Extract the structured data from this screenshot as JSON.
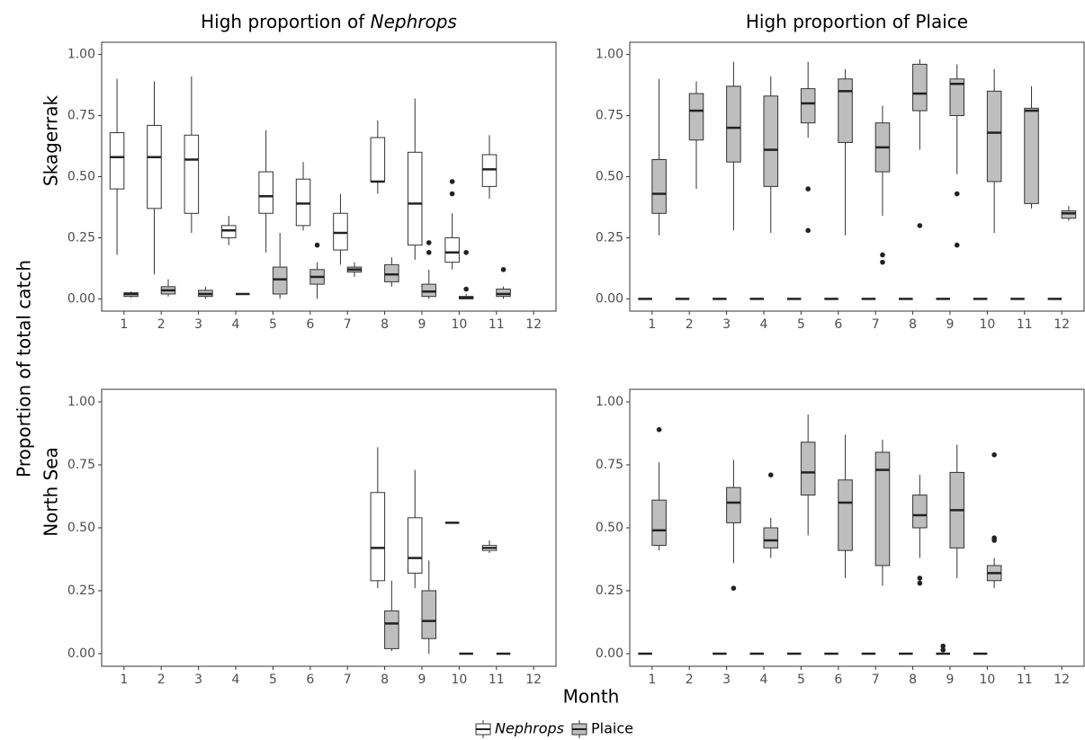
{
  "figure": {
    "x_label": "Month",
    "y_label": "Proportion of total catch",
    "legend": [
      {
        "name": "Nephrops",
        "color": "#ffffff",
        "italic": true
      },
      {
        "name": "Plaice",
        "color": "#bebebe",
        "italic": false
      }
    ]
  },
  "chart_data": [
    {
      "type": "box",
      "title": {
        "text": "High proportion of ",
        "italic": "Nephrops"
      },
      "row_label": "Skagerrak",
      "categories": [
        "1",
        "2",
        "3",
        "4",
        "5",
        "6",
        "7",
        "8",
        "9",
        "10",
        "11",
        "12"
      ],
      "ylim": [
        -0.05,
        1.05
      ],
      "yticks": [
        {
          "value": 0,
          "label": "0.00"
        },
        {
          "value": 0.25,
          "label": "0.25"
        },
        {
          "value": 0.5,
          "label": "0.50"
        },
        {
          "value": 0.75,
          "label": "0.75"
        },
        {
          "value": 1,
          "label": "1.00"
        }
      ],
      "series": [
        {
          "values": [
            {
              "low": 0.18,
              "q1": 0.45,
              "median": 0.58,
              "q3": 0.68,
              "high": 0.9,
              "outliers": []
            },
            {
              "low": 0.1,
              "q1": 0.37,
              "median": 0.58,
              "q3": 0.71,
              "high": 0.89,
              "outliers": []
            },
            {
              "low": 0.27,
              "q1": 0.35,
              "median": 0.57,
              "q3": 0.67,
              "high": 0.91,
              "outliers": []
            },
            {
              "low": 0.22,
              "q1": 0.25,
              "median": 0.28,
              "q3": 0.3,
              "high": 0.34,
              "outliers": []
            },
            {
              "low": 0.19,
              "q1": 0.35,
              "median": 0.42,
              "q3": 0.52,
              "high": 0.69,
              "outliers": []
            },
            {
              "low": 0.28,
              "q1": 0.3,
              "median": 0.39,
              "q3": 0.49,
              "high": 0.56,
              "outliers": []
            },
            {
              "low": 0.14,
              "q1": 0.2,
              "median": 0.27,
              "q3": 0.35,
              "high": 0.43,
              "outliers": []
            },
            {
              "low": 0.43,
              "q1": 0.48,
              "median": 0.48,
              "q3": 0.66,
              "high": 0.73,
              "outliers": []
            },
            {
              "low": 0.16,
              "q1": 0.22,
              "median": 0.39,
              "q3": 0.6,
              "high": 0.82,
              "outliers": []
            },
            {
              "low": 0.12,
              "q1": 0.15,
              "median": 0.19,
              "q3": 0.25,
              "high": 0.35,
              "outliers": [
                0.48,
                0.43
              ]
            },
            {
              "low": 0.41,
              "q1": 0.46,
              "median": 0.53,
              "q3": 0.59,
              "high": 0.67,
              "outliers": []
            },
            null
          ]
        },
        {
          "values": [
            {
              "low": 0.005,
              "q1": 0.01,
              "median": 0.02,
              "q3": 0.025,
              "high": 0.03,
              "outliers": []
            },
            {
              "low": 0.01,
              "q1": 0.02,
              "median": 0.035,
              "q3": 0.05,
              "high": 0.08,
              "outliers": []
            },
            {
              "low": 0,
              "q1": 0.01,
              "median": 0.02,
              "q3": 0.035,
              "high": 0.05,
              "outliers": []
            },
            {
              "low": 0.02,
              "q1": 0.02,
              "median": 0.02,
              "q3": 0.02,
              "high": 0.02,
              "outliers": []
            },
            {
              "low": 0,
              "q1": 0.02,
              "median": 0.08,
              "q3": 0.13,
              "high": 0.27,
              "outliers": []
            },
            {
              "low": 0,
              "q1": 0.06,
              "median": 0.09,
              "q3": 0.12,
              "high": 0.15,
              "outliers": [
                0.22
              ]
            },
            {
              "low": 0.09,
              "q1": 0.11,
              "median": 0.12,
              "q3": 0.13,
              "high": 0.15,
              "outliers": []
            },
            {
              "low": 0.05,
              "q1": 0.07,
              "median": 0.1,
              "q3": 0.14,
              "high": 0.17,
              "outliers": []
            },
            {
              "low": 0,
              "q1": 0.01,
              "median": 0.03,
              "q3": 0.06,
              "high": 0.12,
              "outliers": [
                0.19,
                0.23
              ]
            },
            {
              "low": 0,
              "q1": 0,
              "median": 0.005,
              "q3": 0.01,
              "high": 0.02,
              "outliers": [
                0.19,
                0.04
              ]
            },
            {
              "low": 0,
              "q1": 0.01,
              "median": 0.02,
              "q3": 0.04,
              "high": 0.05,
              "outliers": [
                0.12
              ]
            },
            null
          ]
        }
      ]
    },
    {
      "type": "box",
      "title": {
        "text": "High proportion of Plaice"
      },
      "categories": [
        "1",
        "2",
        "3",
        "4",
        "5",
        "6",
        "7",
        "8",
        "9",
        "10",
        "11",
        "12"
      ],
      "ylim": [
        -0.05,
        1.05
      ],
      "yticks": [
        {
          "value": 0,
          "label": "0.00"
        },
        {
          "value": 0.25,
          "label": "0.25"
        },
        {
          "value": 0.5,
          "label": "0.50"
        },
        {
          "value": 0.75,
          "label": "0.75"
        },
        {
          "value": 1,
          "label": "1.00"
        }
      ],
      "series": [
        {
          "values": [
            {
              "low": 0,
              "q1": 0,
              "median": 0,
              "q3": 0,
              "high": 0,
              "outliers": []
            },
            {
              "low": 0,
              "q1": 0,
              "median": 0,
              "q3": 0,
              "high": 0,
              "outliers": []
            },
            {
              "low": 0,
              "q1": 0,
              "median": 0,
              "q3": 0,
              "high": 0,
              "outliers": []
            },
            {
              "low": 0,
              "q1": 0,
              "median": 0,
              "q3": 0,
              "high": 0,
              "outliers": []
            },
            {
              "low": 0,
              "q1": 0,
              "median": 0,
              "q3": 0,
              "high": 0,
              "outliers": []
            },
            {
              "low": 0,
              "q1": 0,
              "median": 0,
              "q3": 0,
              "high": 0,
              "outliers": []
            },
            {
              "low": 0,
              "q1": 0,
              "median": 0,
              "q3": 0,
              "high": 0,
              "outliers": []
            },
            {
              "low": 0,
              "q1": 0,
              "median": 0,
              "q3": 0,
              "high": 0,
              "outliers": []
            },
            {
              "low": 0,
              "q1": 0,
              "median": 0,
              "q3": 0,
              "high": 0,
              "outliers": []
            },
            {
              "low": 0,
              "q1": 0,
              "median": 0,
              "q3": 0,
              "high": 0,
              "outliers": []
            },
            {
              "low": 0,
              "q1": 0,
              "median": 0,
              "q3": 0,
              "high": 0,
              "outliers": []
            },
            {
              "low": 0,
              "q1": 0,
              "median": 0,
              "q3": 0,
              "high": 0,
              "outliers": []
            }
          ]
        },
        {
          "values": [
            {
              "low": 0.26,
              "q1": 0.35,
              "median": 0.43,
              "q3": 0.57,
              "high": 0.9,
              "outliers": []
            },
            {
              "low": 0.45,
              "q1": 0.65,
              "median": 0.77,
              "q3": 0.84,
              "high": 0.89,
              "outliers": []
            },
            {
              "low": 0.28,
              "q1": 0.56,
              "median": 0.7,
              "q3": 0.87,
              "high": 0.97,
              "outliers": []
            },
            {
              "low": 0.27,
              "q1": 0.46,
              "median": 0.61,
              "q3": 0.83,
              "high": 0.91,
              "outliers": []
            },
            {
              "low": 0.66,
              "q1": 0.72,
              "median": 0.8,
              "q3": 0.86,
              "high": 0.97,
              "outliers": [
                0.45,
                0.28
              ]
            },
            {
              "low": 0.26,
              "q1": 0.64,
              "median": 0.85,
              "q3": 0.9,
              "high": 0.94,
              "outliers": []
            },
            {
              "low": 0.34,
              "q1": 0.52,
              "median": 0.62,
              "q3": 0.72,
              "high": 0.79,
              "outliers": [
                0.18,
                0.15
              ]
            },
            {
              "low": 0.61,
              "q1": 0.77,
              "median": 0.84,
              "q3": 0.96,
              "high": 0.98,
              "outliers": [
                0.3
              ]
            },
            {
              "low": 0.51,
              "q1": 0.75,
              "median": 0.88,
              "q3": 0.9,
              "high": 0.96,
              "outliers": [
                0.43,
                0.22
              ]
            },
            {
              "low": 0.27,
              "q1": 0.48,
              "median": 0.68,
              "q3": 0.85,
              "high": 0.94,
              "outliers": []
            },
            {
              "low": 0.37,
              "q1": 0.39,
              "median": 0.77,
              "q3": 0.78,
              "high": 0.87,
              "outliers": []
            },
            {
              "low": 0.32,
              "q1": 0.33,
              "median": 0.35,
              "q3": 0.36,
              "high": 0.38,
              "outliers": []
            }
          ]
        }
      ]
    },
    {
      "type": "box",
      "row_label": "North Sea",
      "categories": [
        "1",
        "2",
        "3",
        "4",
        "5",
        "6",
        "7",
        "8",
        "9",
        "10",
        "11",
        "12"
      ],
      "ylim": [
        -0.05,
        1.05
      ],
      "yticks": [
        {
          "value": 0,
          "label": "0.00"
        },
        {
          "value": 0.25,
          "label": "0.25"
        },
        {
          "value": 0.5,
          "label": "0.50"
        },
        {
          "value": 0.75,
          "label": "0.75"
        },
        {
          "value": 1,
          "label": "1.00"
        }
      ],
      "series": [
        {
          "values": [
            null,
            null,
            null,
            null,
            null,
            null,
            null,
            {
              "low": 0.26,
              "q1": 0.29,
              "median": 0.42,
              "q3": 0.64,
              "high": 0.82,
              "outliers": []
            },
            {
              "low": 0.26,
              "q1": 0.32,
              "median": 0.38,
              "q3": 0.54,
              "high": 0.73,
              "outliers": []
            },
            {
              "low": 0.52,
              "q1": 0.52,
              "median": 0.52,
              "q3": 0.52,
              "high": 0.52,
              "outliers": []
            },
            {
              "low": 0.4,
              "q1": 0.41,
              "median": 0.42,
              "q3": 0.43,
              "high": 0.45,
              "outliers": []
            },
            null
          ]
        },
        {
          "values": [
            null,
            null,
            null,
            null,
            null,
            null,
            null,
            {
              "low": 0.01,
              "q1": 0.02,
              "median": 0.12,
              "q3": 0.17,
              "high": 0.29,
              "outliers": []
            },
            {
              "low": 0,
              "q1": 0.06,
              "median": 0.13,
              "q3": 0.25,
              "high": 0.37,
              "outliers": []
            },
            {
              "low": 0,
              "q1": 0,
              "median": 0,
              "q3": 0,
              "high": 0,
              "outliers": []
            },
            {
              "low": 0,
              "q1": 0,
              "median": 0,
              "q3": 0,
              "high": 0,
              "outliers": []
            },
            null
          ]
        }
      ]
    },
    {
      "type": "box",
      "categories": [
        "1",
        "2",
        "3",
        "4",
        "5",
        "6",
        "7",
        "8",
        "9",
        "10",
        "11",
        "12"
      ],
      "ylim": [
        -0.05,
        1.05
      ],
      "yticks": [
        {
          "value": 0,
          "label": "0.00"
        },
        {
          "value": 0.25,
          "label": "0.25"
        },
        {
          "value": 0.5,
          "label": "0.50"
        },
        {
          "value": 0.75,
          "label": "0.75"
        },
        {
          "value": 1,
          "label": "1.00"
        }
      ],
      "series": [
        {
          "values": [
            {
              "low": 0,
              "q1": 0,
              "median": 0,
              "q3": 0,
              "high": 0,
              "outliers": []
            },
            null,
            {
              "low": 0,
              "q1": 0,
              "median": 0,
              "q3": 0,
              "high": 0,
              "outliers": []
            },
            {
              "low": 0,
              "q1": 0,
              "median": 0,
              "q3": 0,
              "high": 0,
              "outliers": []
            },
            {
              "low": 0,
              "q1": 0,
              "median": 0,
              "q3": 0,
              "high": 0,
              "outliers": []
            },
            {
              "low": 0,
              "q1": 0,
              "median": 0,
              "q3": 0,
              "high": 0,
              "outliers": []
            },
            {
              "low": 0,
              "q1": 0,
              "median": 0,
              "q3": 0,
              "high": 0,
              "outliers": []
            },
            {
              "low": 0,
              "q1": 0,
              "median": 0,
              "q3": 0,
              "high": 0,
              "outliers": []
            },
            {
              "low": 0,
              "q1": 0,
              "median": 0,
              "q3": 0,
              "high": 0,
              "outliers": [
                0.03,
                0.015
              ]
            },
            {
              "low": 0,
              "q1": 0,
              "median": 0,
              "q3": 0,
              "high": 0,
              "outliers": []
            },
            null,
            null
          ]
        },
        {
          "values": [
            {
              "low": 0.41,
              "q1": 0.43,
              "median": 0.49,
              "q3": 0.61,
              "high": 0.76,
              "outliers": [
                0.89
              ]
            },
            null,
            {
              "low": 0.36,
              "q1": 0.52,
              "median": 0.6,
              "q3": 0.66,
              "high": 0.77,
              "outliers": [
                0.26
              ]
            },
            {
              "low": 0.38,
              "q1": 0.42,
              "median": 0.45,
              "q3": 0.5,
              "high": 0.54,
              "outliers": [
                0.71
              ]
            },
            {
              "low": 0.47,
              "q1": 0.63,
              "median": 0.72,
              "q3": 0.84,
              "high": 0.95,
              "outliers": []
            },
            {
              "low": 0.3,
              "q1": 0.41,
              "median": 0.6,
              "q3": 0.69,
              "high": 0.87,
              "outliers": []
            },
            {
              "low": 0.27,
              "q1": 0.35,
              "median": 0.73,
              "q3": 0.8,
              "high": 0.85,
              "outliers": []
            },
            {
              "low": 0.38,
              "q1": 0.5,
              "median": 0.55,
              "q3": 0.63,
              "high": 0.71,
              "outliers": [
                0.3,
                0.28
              ]
            },
            {
              "low": 0.3,
              "q1": 0.42,
              "median": 0.57,
              "q3": 0.72,
              "high": 0.83,
              "outliers": []
            },
            {
              "low": 0.26,
              "q1": 0.29,
              "median": 0.32,
              "q3": 0.35,
              "high": 0.38,
              "outliers": [
                0.79,
                0.46,
                0.45
              ]
            },
            null,
            null
          ]
        }
      ]
    }
  ]
}
